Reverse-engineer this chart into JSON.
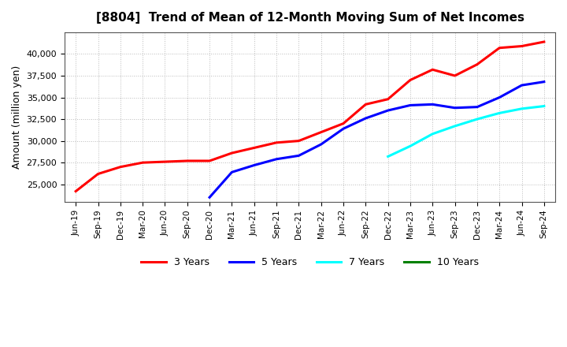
{
  "title": "[8804]  Trend of Mean of 12-Month Moving Sum of Net Incomes",
  "ylabel": "Amount (million yen)",
  "background_color": "#ffffff",
  "grid_color": "#aaaaaa",
  "xlabels": [
    "Jun-19",
    "Sep-19",
    "Dec-19",
    "Mar-20",
    "Jun-20",
    "Sep-20",
    "Dec-20",
    "Mar-21",
    "Jun-21",
    "Sep-21",
    "Dec-21",
    "Mar-22",
    "Jun-22",
    "Sep-22",
    "Dec-22",
    "Mar-23",
    "Jun-23",
    "Sep-23",
    "Dec-23",
    "Mar-24",
    "Jun-24",
    "Sep-24"
  ],
  "ylim": [
    23000,
    42500
  ],
  "yticks": [
    25000,
    27500,
    30000,
    32500,
    35000,
    37500,
    40000
  ],
  "series": [
    {
      "label": "3 Years",
      "color": "#ff0000",
      "x_indices": [
        0,
        1,
        2,
        3,
        4,
        5,
        6,
        7,
        8,
        9,
        10,
        11,
        12,
        13,
        14,
        15,
        16,
        17,
        18,
        19,
        20,
        21
      ],
      "values": [
        24200,
        26200,
        27000,
        27500,
        27600,
        27700,
        27700,
        28600,
        29200,
        29800,
        30000,
        31000,
        32000,
        34200,
        34800,
        37000,
        38200,
        37500,
        38800,
        40700,
        40900,
        41400
      ]
    },
    {
      "label": "5 Years",
      "color": "#0000ff",
      "x_indices": [
        6,
        7,
        8,
        9,
        10,
        11,
        12,
        13,
        14,
        15,
        16,
        17,
        18,
        19,
        20,
        21
      ],
      "values": [
        23500,
        26400,
        27200,
        27900,
        28300,
        29600,
        31400,
        32600,
        33500,
        34100,
        34200,
        33800,
        33900,
        35000,
        36400,
        36800
      ]
    },
    {
      "label": "7 Years",
      "color": "#00ffff",
      "x_indices": [
        14,
        15,
        16,
        17,
        18,
        19,
        20,
        21
      ],
      "values": [
        28200,
        29400,
        30800,
        31700,
        32500,
        33200,
        33700,
        34000
      ]
    },
    {
      "label": "10 Years",
      "color": "#008000",
      "x_indices": [],
      "values": []
    }
  ],
  "legend_labels": [
    "3 Years",
    "5 Years",
    "7 Years",
    "10 Years"
  ],
  "legend_colors": [
    "#ff0000",
    "#0000ff",
    "#00ffff",
    "#008000"
  ]
}
